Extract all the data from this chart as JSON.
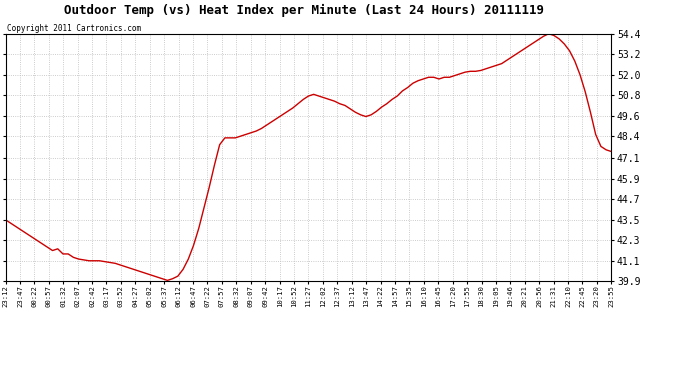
{
  "title": "Outdoor Temp (vs) Heat Index per Minute (Last 24 Hours) 20111119",
  "copyright": "Copyright 2011 Cartronics.com",
  "line_color": "#cc0000",
  "background_color": "#ffffff",
  "plot_bg_color": "#ffffff",
  "grid_color": "#bbbbbb",
  "ylim_min": 39.9,
  "ylim_max": 54.4,
  "yticks": [
    39.9,
    41.1,
    42.3,
    43.5,
    44.7,
    45.9,
    47.1,
    48.4,
    49.6,
    50.8,
    52.0,
    53.2,
    54.4
  ],
  "xtick_labels": [
    "23:12",
    "23:47",
    "00:22",
    "00:57",
    "01:32",
    "02:07",
    "02:42",
    "03:17",
    "03:52",
    "04:27",
    "05:02",
    "05:37",
    "06:12",
    "06:47",
    "07:22",
    "07:57",
    "08:32",
    "09:07",
    "09:42",
    "10:17",
    "10:52",
    "11:27",
    "12:02",
    "12:37",
    "13:12",
    "13:47",
    "14:22",
    "14:57",
    "15:35",
    "16:10",
    "16:45",
    "17:20",
    "17:55",
    "18:30",
    "19:05",
    "19:46",
    "20:21",
    "20:56",
    "21:31",
    "22:10",
    "22:45",
    "23:20",
    "23:55"
  ],
  "data_y": [
    43.5,
    43.3,
    43.1,
    42.9,
    42.7,
    42.5,
    42.3,
    42.1,
    41.9,
    41.7,
    41.8,
    41.5,
    41.5,
    41.3,
    41.2,
    41.15,
    41.1,
    41.1,
    41.1,
    41.05,
    41.0,
    40.95,
    40.85,
    40.75,
    40.65,
    40.55,
    40.45,
    40.35,
    40.25,
    40.15,
    40.05,
    39.95,
    40.05,
    40.2,
    40.6,
    41.2,
    42.0,
    43.0,
    44.2,
    45.4,
    46.7,
    47.9,
    48.3,
    48.3,
    48.3,
    48.4,
    48.5,
    48.6,
    48.7,
    48.85,
    49.05,
    49.25,
    49.45,
    49.65,
    49.85,
    50.05,
    50.3,
    50.55,
    50.75,
    50.85,
    50.75,
    50.65,
    50.55,
    50.45,
    50.3,
    50.2,
    50.0,
    49.8,
    49.65,
    49.55,
    49.65,
    49.85,
    50.1,
    50.3,
    50.55,
    50.75,
    51.05,
    51.25,
    51.5,
    51.65,
    51.75,
    51.85,
    51.85,
    51.75,
    51.85,
    51.85,
    51.95,
    52.05,
    52.15,
    52.2,
    52.2,
    52.25,
    52.35,
    52.45,
    52.55,
    52.65,
    52.85,
    53.05,
    53.25,
    53.45,
    53.65,
    53.85,
    54.05,
    54.25,
    54.4,
    54.3,
    54.1,
    53.8,
    53.4,
    52.8,
    52.0,
    51.0,
    49.8,
    48.5,
    47.8,
    47.6,
    47.5
  ],
  "title_fontsize": 9,
  "copyright_fontsize": 5.5,
  "ytick_fontsize": 7,
  "xtick_fontsize": 5.2,
  "line_width": 1.0
}
